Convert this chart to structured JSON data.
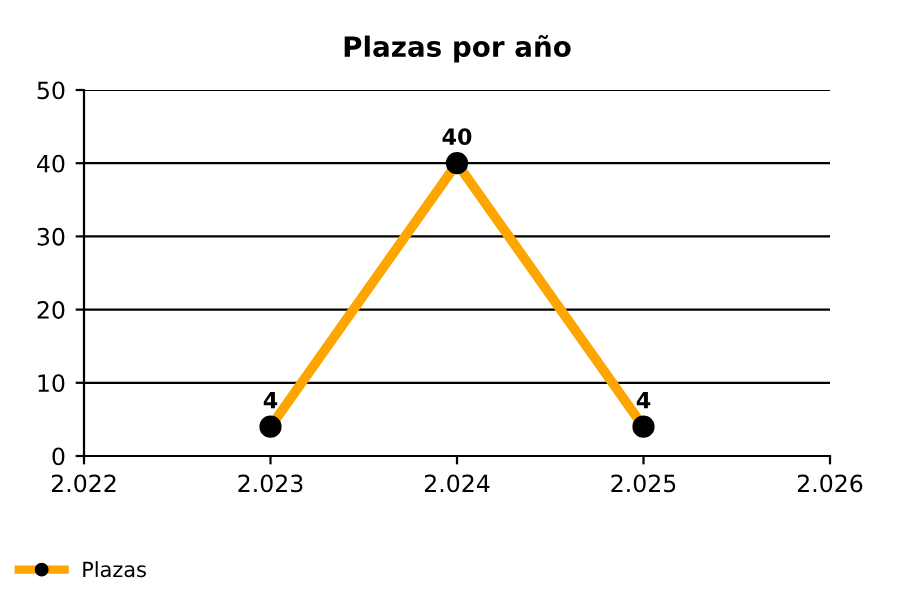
{
  "chart_data": {
    "type": "line",
    "title": "Plazas por año",
    "x": [
      2023,
      2024,
      2025
    ],
    "series": [
      {
        "name": "Plazas",
        "color": "#ffa500",
        "values": [
          4,
          40,
          4
        ]
      }
    ],
    "xlim": [
      2022,
      2026
    ],
    "xticks": [
      {
        "value": 2022,
        "label": "2.022"
      },
      {
        "value": 2023,
        "label": "2.023"
      },
      {
        "value": 2024,
        "label": "2.024"
      },
      {
        "value": 2025,
        "label": "2.025"
      },
      {
        "value": 2026,
        "label": "2.026"
      }
    ],
    "ylim": [
      0,
      50
    ],
    "yticks": [
      0,
      10,
      20,
      30,
      40,
      50
    ],
    "grid": "y",
    "legend": "bottom left",
    "marker": "circle",
    "line_style": "solid",
    "data_labels": true
  }
}
